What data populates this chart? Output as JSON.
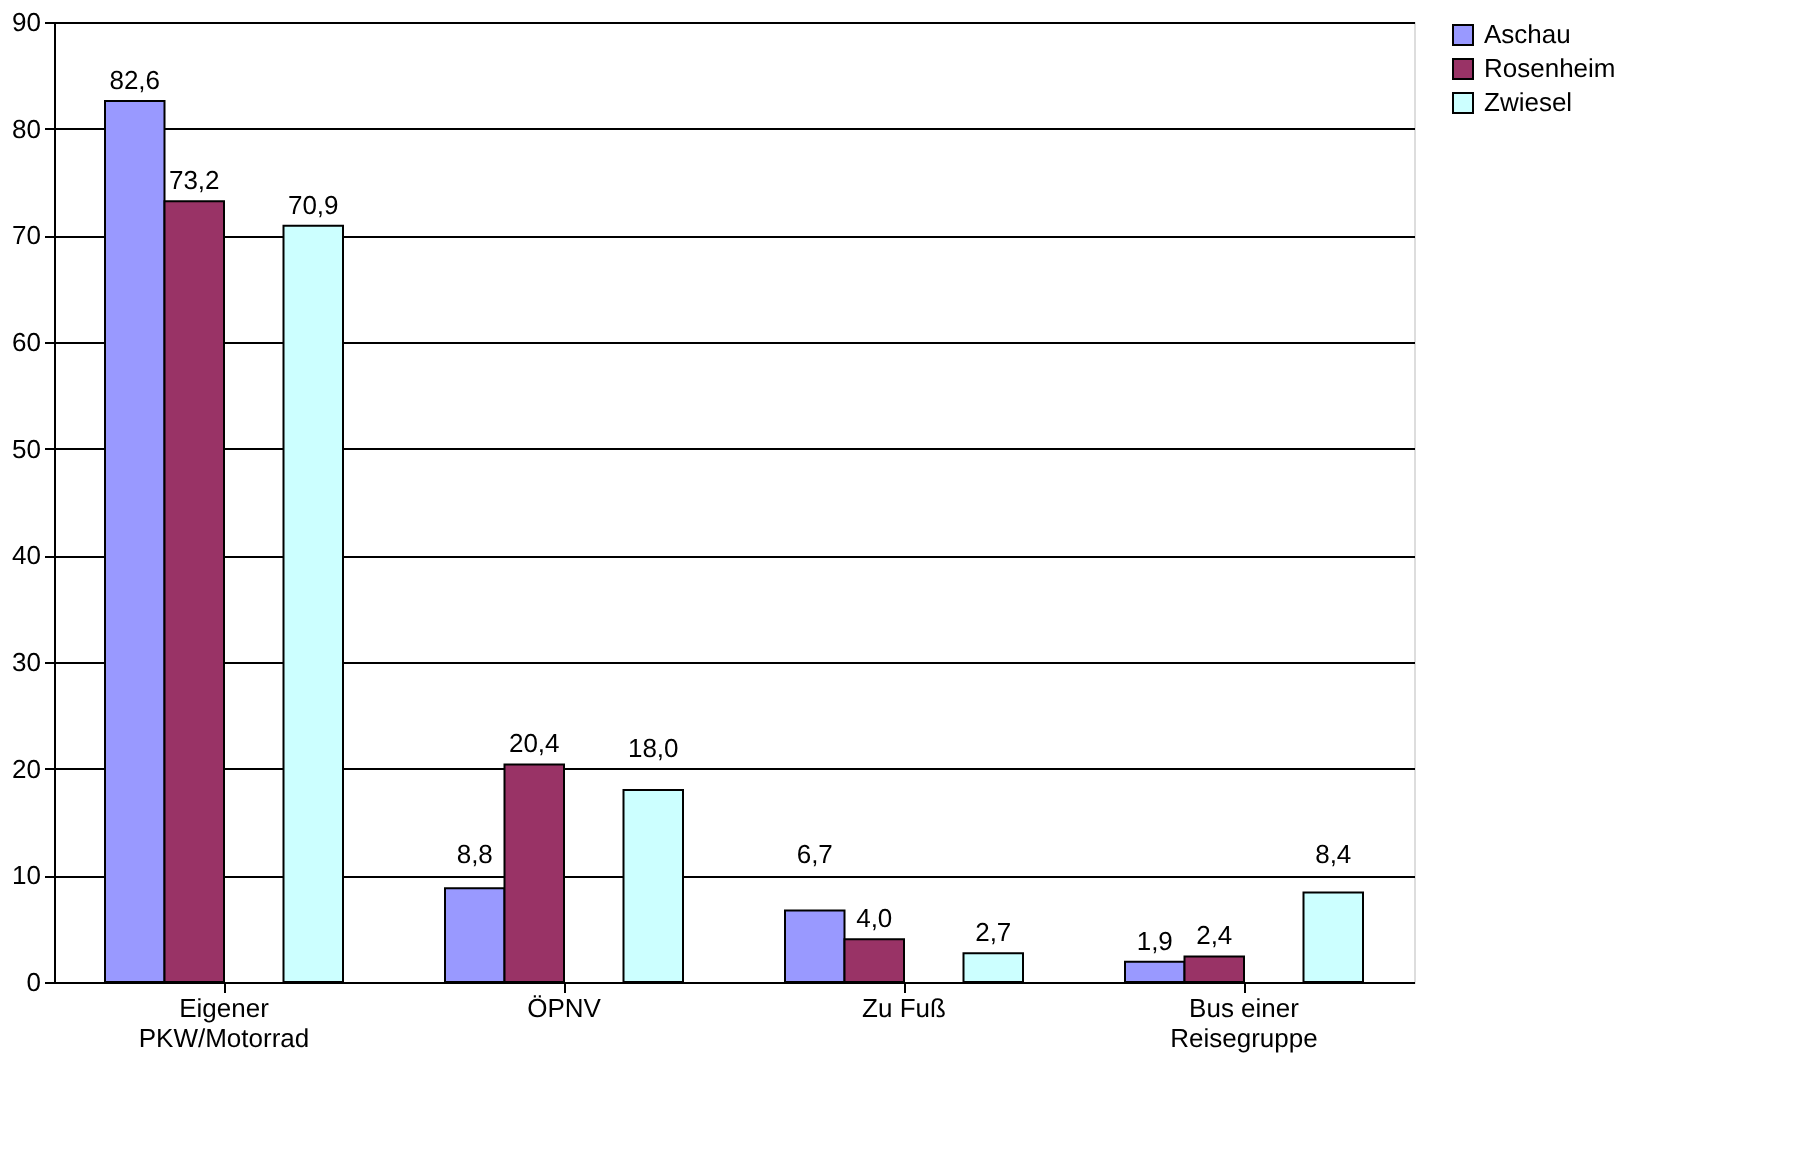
{
  "chart_data": {
    "type": "bar",
    "categories": [
      "Eigener\nPKW/Motorrad",
      "ÖPNV",
      "Zu Fuß",
      "Bus einer\nReisegruppe"
    ],
    "series": [
      {
        "name": "Aschau",
        "color": "#9999ff",
        "values": [
          82.6,
          8.8,
          6.7,
          1.9
        ],
        "value_labels": [
          "82,6",
          "8,8",
          "6,7",
          "1,9"
        ]
      },
      {
        "name": "Rosenheim",
        "color": "#993366",
        "values": [
          73.2,
          20.4,
          4.0,
          2.4
        ],
        "value_labels": [
          "73,2",
          "20,4",
          "4,0",
          "2,4"
        ]
      },
      {
        "values": [
          null,
          null,
          null,
          null
        ]
      },
      {
        "name": "Zwiesel",
        "color": "#ccffff",
        "values": [
          70.9,
          18.0,
          2.7,
          8.4
        ],
        "value_labels": [
          "70,9",
          "18,0",
          "2,7",
          "8,4"
        ]
      }
    ],
    "ylim": [
      0,
      90
    ],
    "yticks": [
      0,
      10,
      20,
      30,
      40,
      50,
      60,
      70,
      80,
      90
    ],
    "grid": "y",
    "legend": "right"
  }
}
